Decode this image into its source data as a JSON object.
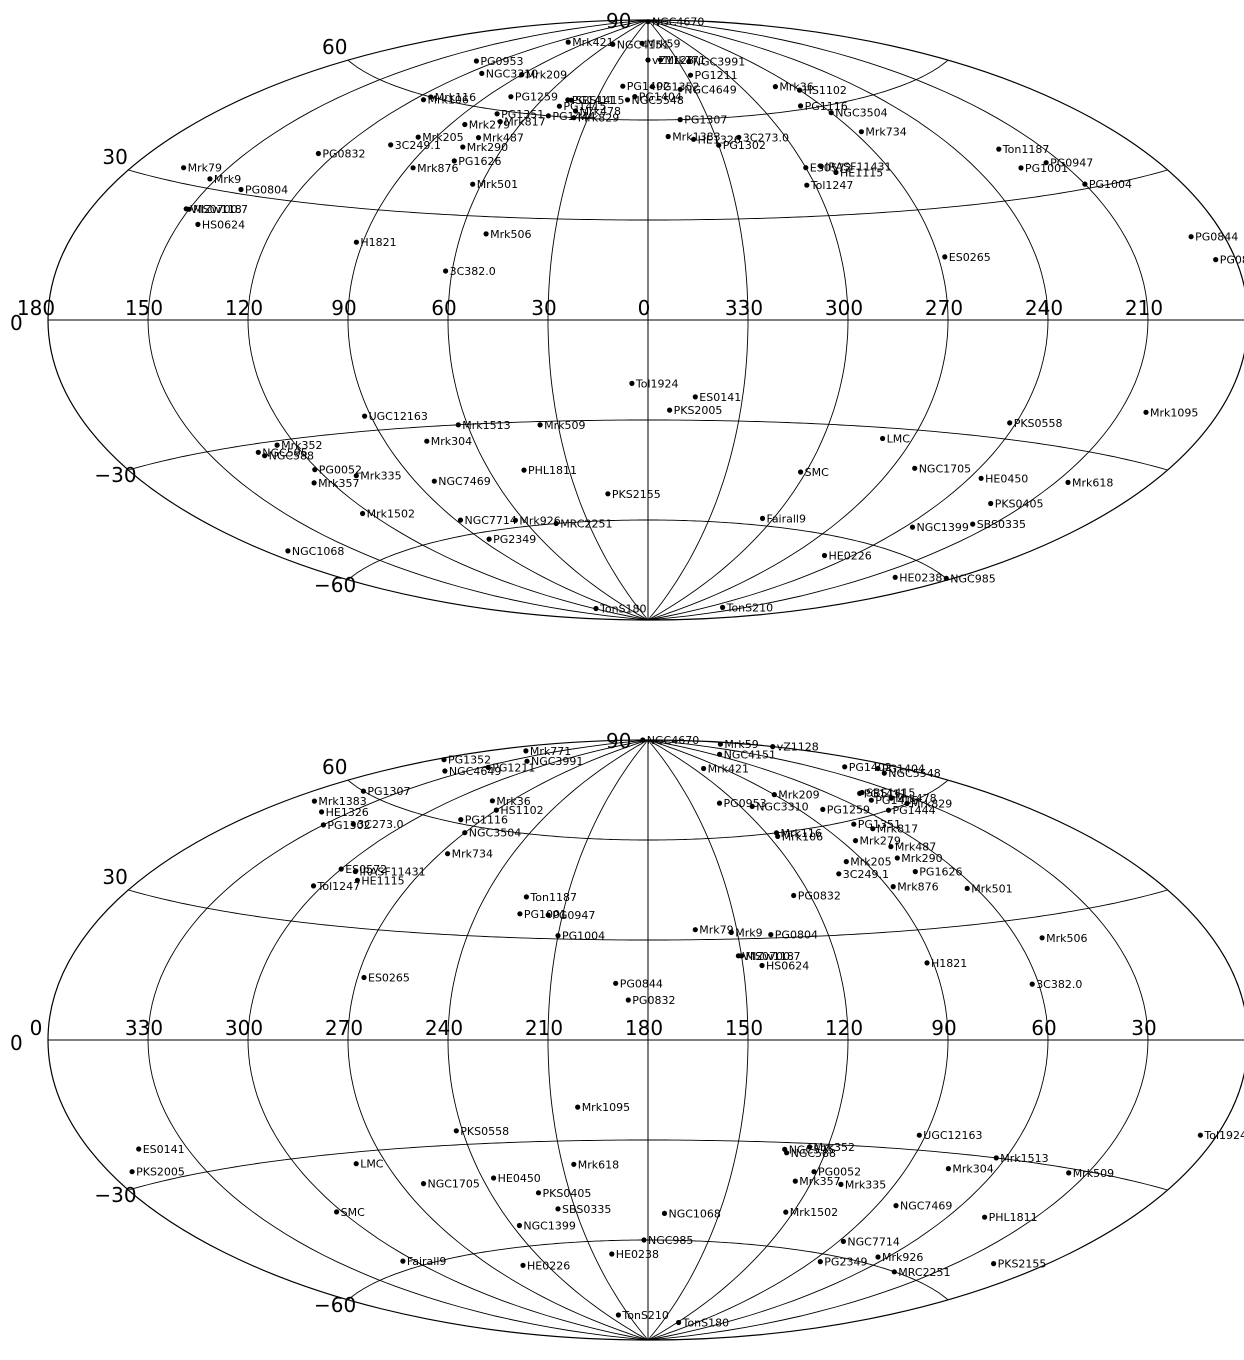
{
  "chart_data": [
    {
      "type": "scatter",
      "projection": "aitoff",
      "center_longitude": 0,
      "longitude_direction": "increasing-left",
      "lon_ticks": [
        "180",
        "150",
        "120",
        "90",
        "60",
        "30",
        "0",
        "330",
        "300",
        "270",
        "240",
        "210"
      ],
      "lat_ticks": [
        "90",
        "60",
        "30",
        "0",
        "−30",
        "−60"
      ],
      "points": [
        {
          "name": "NGC4670",
          "l": -0.9,
          "b": 89.5
        },
        {
          "name": "NGC3991",
          "l": -40,
          "b": 77
        },
        {
          "name": "Mrk771",
          "l": -13,
          "b": 78
        },
        {
          "name": "PG1211",
          "l": -33,
          "b": 73
        },
        {
          "name": "Mrk36",
          "l": -80,
          "b": 67
        },
        {
          "name": "HS1102",
          "l": -90,
          "b": 65
        },
        {
          "name": "NGC4649",
          "l": -21,
          "b": 69
        },
        {
          "name": "PG1116",
          "l": -80,
          "b": 61
        },
        {
          "name": "NGC3504",
          "l": -90,
          "b": 58
        },
        {
          "name": "Mrk734",
          "l": -93,
          "b": 52
        },
        {
          "name": "PG1307",
          "l": -16,
          "b": 60
        },
        {
          "name": "3C273.0",
          "l": -40,
          "b": 54
        },
        {
          "name": "Ton1187",
          "l": -135,
          "b": 42
        },
        {
          "name": "PG1001",
          "l": -135,
          "b": 37
        },
        {
          "name": "PG0947",
          "l": -145,
          "b": 37
        },
        {
          "name": "PG1004",
          "l": -150,
          "b": 31
        },
        {
          "name": "PG0844",
          "l": -170,
          "b": 17
        },
        {
          "name": "PG0832",
          "l": -174,
          "b": 12
        },
        {
          "name": "NGC4151",
          "l": 54,
          "b": 82
        },
        {
          "name": "Mrk59",
          "l": 10,
          "b": 83
        },
        {
          "name": "Mrk421",
          "l": 109,
          "b": 80
        },
        {
          "name": "Mrk209",
          "l": 90,
          "b": 70
        },
        {
          "name": "vZ1128",
          "l": 0,
          "b": 78
        },
        {
          "name": "PG1402",
          "l": 17,
          "b": 70
        },
        {
          "name": "PG1352",
          "l": -3,
          "b": 70
        },
        {
          "name": "PG1411",
          "l": 46,
          "b": 65
        },
        {
          "name": "SBS1415",
          "l": 44,
          "b": 65
        },
        {
          "name": "PG1404",
          "l": 8,
          "b": 67
        },
        {
          "name": "NGC5548",
          "l": 12,
          "b": 66
        },
        {
          "name": "PG1415",
          "l": 48,
          "b": 63
        },
        {
          "name": "Mrk478",
          "l": 38,
          "b": 62
        },
        {
          "name": "PG1444",
          "l": 50,
          "b": 60
        },
        {
          "name": "Mrk829",
          "l": 37,
          "b": 60
        },
        {
          "name": "PG0953",
          "l": 131,
          "b": 70
        },
        {
          "name": "NGC3310",
          "l": 113,
          "b": 68
        },
        {
          "name": "PG1259",
          "l": 78,
          "b": 64
        },
        {
          "name": "Mrk116",
          "l": 115,
          "b": 60
        },
        {
          "name": "Mrk106",
          "l": 116,
          "b": 59
        },
        {
          "name": "PG1351",
          "l": 75,
          "b": 59
        },
        {
          "name": "Mrk817",
          "l": 70,
          "b": 57
        },
        {
          "name": "Mrk279",
          "l": 84,
          "b": 55
        },
        {
          "name": "Mrk487",
          "l": 73,
          "b": 52
        },
        {
          "name": "Mrk290",
          "l": 76,
          "b": 49
        },
        {
          "name": "Mrk205",
          "l": 97,
          "b": 50
        },
        {
          "name": "3C249.1",
          "l": 104,
          "b": 47
        },
        {
          "name": "PG1626",
          "l": 75,
          "b": 45
        },
        {
          "name": "Mrk876",
          "l": 88,
          "b": 42
        },
        {
          "name": "PG0832",
          "l": 126,
          "b": 42
        },
        {
          "name": "Mrk501",
          "l": 63,
          "b": 39
        },
        {
          "name": "Mrk79",
          "l": 164,
          "b": 33
        },
        {
          "name": "Mrk9",
          "l": 152,
          "b": 32
        },
        {
          "name": "PG0804",
          "l": 139,
          "b": 31
        },
        {
          "name": "Mrk506",
          "l": 52,
          "b": 25
        },
        {
          "name": "MS0700.7",
          "l": 150,
          "b": 25
        },
        {
          "name": "VIIZw118",
          "l": 151,
          "b": 25
        },
        {
          "name": "HS0624",
          "l": 144,
          "b": 22
        },
        {
          "name": "H1821",
          "l": 92,
          "b": 21
        },
        {
          "name": "3C382.0",
          "l": 62,
          "b": 14
        },
        {
          "name": "Mrk1383",
          "l": -9,
          "b": 55
        },
        {
          "name": "HE1326",
          "l": -20,
          "b": 54
        },
        {
          "name": "PG1302",
          "l": -30,
          "b": 52
        },
        {
          "name": "ES0572",
          "l": -60,
          "b": 44
        },
        {
          "name": "IRASF11431",
          "l": -66,
          "b": 44
        },
        {
          "name": "HE1115",
          "l": -70,
          "b": 42
        },
        {
          "name": "Tol1247",
          "l": -57,
          "b": 39
        },
        {
          "name": "ES0265",
          "l": -92,
          "b": 17
        },
        {
          "name": "Mrk1095",
          "l": -158,
          "b": -20
        },
        {
          "name": "Tol1924",
          "l": 5,
          "b": -19
        },
        {
          "name": "ES0141",
          "l": -15,
          "b": -23
        },
        {
          "name": "PKS2005",
          "l": -7,
          "b": -27
        },
        {
          "name": "LMC",
          "l": -80,
          "b": -33
        },
        {
          "name": "PKS0558",
          "l": -118,
          "b": -26
        },
        {
          "name": "NGC1705",
          "l": -98,
          "b": -40
        },
        {
          "name": "HE0450",
          "l": -124,
          "b": -40
        },
        {
          "name": "Mrk618",
          "l": -154,
          "b": -37
        },
        {
          "name": "SMC",
          "l": -58,
          "b": -44
        },
        {
          "name": "PKS0405",
          "l": -138,
          "b": -45
        },
        {
          "name": "SBS0335",
          "l": -143,
          "b": -50
        },
        {
          "name": "NGC1399",
          "l": -123,
          "b": -54
        },
        {
          "name": "Fairall9",
          "l": -55,
          "b": -58
        },
        {
          "name": "HE0226",
          "l": -107,
          "b": -65
        },
        {
          "name": "HE0238",
          "l": -160,
          "b": -64
        },
        {
          "name": "NGC985",
          "l": -178,
          "b": -60
        },
        {
          "name": "TonS210",
          "l": -135,
          "b": -82
        },
        {
          "name": "TonS180",
          "l": 118,
          "b": -84
        },
        {
          "name": "UGC12163",
          "l": 92,
          "b": -26
        },
        {
          "name": "Mrk1513",
          "l": 63,
          "b": -30
        },
        {
          "name": "Mrk509",
          "l": 36,
          "b": -31
        },
        {
          "name": "NGC595",
          "l": 134,
          "b": -32
        },
        {
          "name": "NGC588",
          "l": 133,
          "b": -33
        },
        {
          "name": "Mrk352",
          "l": 126,
          "b": -31
        },
        {
          "name": "Mrk304",
          "l": 76,
          "b": -34
        },
        {
          "name": "PG0052",
          "l": 121,
          "b": -38
        },
        {
          "name": "Mrk357",
          "l": 126,
          "b": -41
        },
        {
          "name": "Mrk335",
          "l": 109,
          "b": -41
        },
        {
          "name": "PHL1811",
          "l": 47,
          "b": -44
        },
        {
          "name": "NGC7469",
          "l": 83,
          "b": -45
        },
        {
          "name": "PKS2155",
          "l": 17,
          "b": -52
        },
        {
          "name": "Mrk1502",
          "l": 123,
          "b": -50
        },
        {
          "name": "NGC7714",
          "l": 88,
          "b": -56
        },
        {
          "name": "Mrk926",
          "l": 64,
          "b": -58
        },
        {
          "name": "MRC2251",
          "l": 46,
          "b": -60
        },
        {
          "name": "PG2349",
          "l": 86,
          "b": -62
        },
        {
          "name": "NGC1068",
          "l": 173,
          "b": -52
        }
      ]
    },
    {
      "type": "scatter",
      "projection": "aitoff",
      "center_longitude": 180,
      "longitude_direction": "increasing-left",
      "lon_ticks": [
        "0",
        "330",
        "300",
        "270",
        "240",
        "210",
        "180",
        "150",
        "120",
        "90",
        "60",
        "30"
      ],
      "lat_ticks": [
        "90",
        "60",
        "30",
        "0",
        "−30",
        "−60"
      ],
      "points_ref": "same as first map"
    }
  ]
}
